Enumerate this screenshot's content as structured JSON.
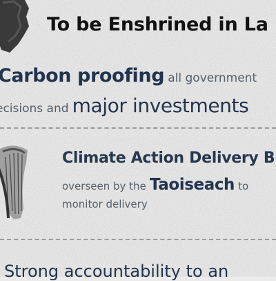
{
  "heading": "To be Enshrined in La",
  "carbon_proofing": {
    "bold_text": "Carbon proofing",
    "rest_line1": "all government",
    "line2_small": "ecisions and",
    "line2_big": "major investments"
  },
  "delivery_board": {
    "title": "Climate Action Delivery B",
    "overseen_prefix": "overseen by the",
    "taoiseach": "Taoiseach",
    "overseen_suffix": "to",
    "line3": "monitor delivery"
  },
  "accountability": {
    "text": "Strong accountability to an"
  }
}
